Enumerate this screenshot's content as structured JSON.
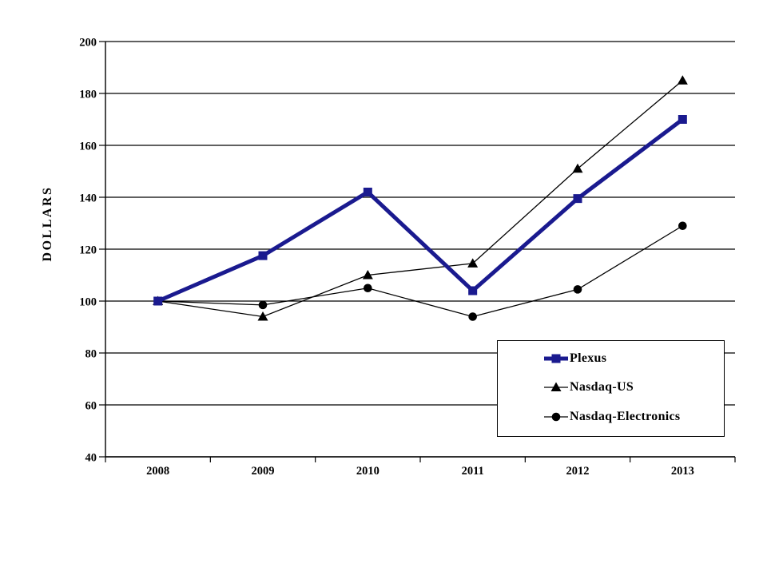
{
  "page": {
    "background": "#ffffff"
  },
  "chart_data": {
    "type": "line",
    "title": "",
    "xlabel": "",
    "ylabel": "DOLLARS",
    "categories": [
      "2008",
      "2009",
      "2010",
      "2011",
      "2012",
      "2013"
    ],
    "ylim": [
      40,
      200
    ],
    "yticks": [
      200,
      180,
      160,
      140,
      120,
      100,
      80,
      60,
      40
    ],
    "grid": "horizontal",
    "grid_color": "#000000",
    "legend_position": "inside-bottom-right",
    "series": [
      {
        "name": "Plexus",
        "color": "#1a1a8f",
        "marker": "square",
        "line_width": 5,
        "values": [
          100,
          117.5,
          142,
          104,
          139.5,
          170
        ]
      },
      {
        "name": "Nasdaq-US",
        "color": "#000000",
        "marker": "triangle",
        "line_width": 1.3,
        "values": [
          100,
          94,
          110,
          114.5,
          151,
          185
        ]
      },
      {
        "name": "Nasdaq-Electronics",
        "color": "#000000",
        "marker": "circle",
        "line_width": 1.3,
        "values": [
          100,
          98.5,
          105,
          94,
          104.5,
          129
        ]
      }
    ]
  }
}
